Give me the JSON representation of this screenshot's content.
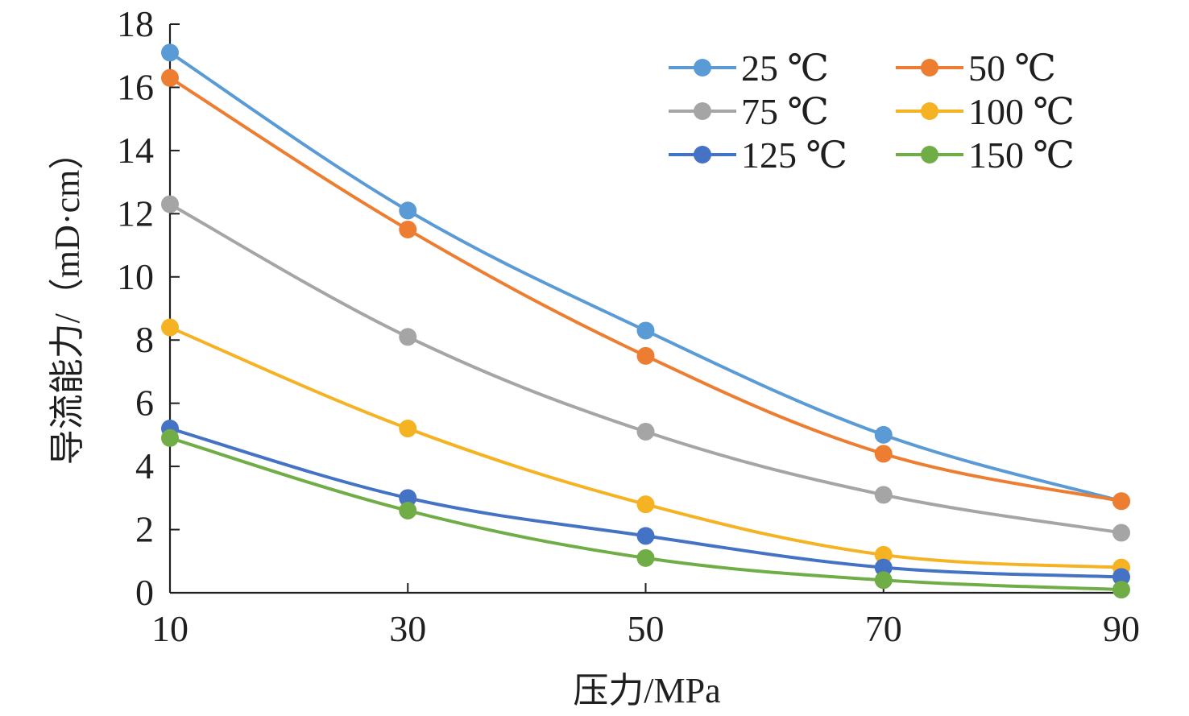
{
  "chart_data": {
    "type": "line",
    "xlabel": "压力/MPa",
    "ylabel": "导流能力/（mD·cm）",
    "x": [
      10,
      30,
      50,
      70,
      90
    ],
    "x_ticks": [
      "10",
      "30",
      "50",
      "70",
      "90"
    ],
    "xlim": [
      10,
      90
    ],
    "y_ticks": [
      "0",
      "2",
      "4",
      "6",
      "8",
      "10",
      "12",
      "14",
      "16",
      "18"
    ],
    "ylim": [
      0,
      18
    ],
    "grid": false,
    "legend_position": "top-right",
    "series": [
      {
        "name": "25 ℃",
        "color": "#5b9bd5",
        "values": [
          17.1,
          12.1,
          8.3,
          5.0,
          2.9
        ]
      },
      {
        "name": "50 ℃",
        "color": "#ed7d31",
        "values": [
          16.3,
          11.5,
          7.5,
          4.4,
          2.9
        ]
      },
      {
        "name": "75 ℃",
        "color": "#a5a5a5",
        "values": [
          12.3,
          8.1,
          5.1,
          3.1,
          1.9
        ]
      },
      {
        "name": "100 ℃",
        "color": "#f5b222",
        "values": [
          8.4,
          5.2,
          2.8,
          1.2,
          0.8
        ]
      },
      {
        "name": "125 ℃",
        "color": "#4472c4",
        "values": [
          5.2,
          3.0,
          1.8,
          0.8,
          0.5
        ]
      },
      {
        "name": "150 ℃",
        "color": "#70ad47",
        "values": [
          4.9,
          2.6,
          1.1,
          0.4,
          0.1
        ]
      }
    ]
  }
}
